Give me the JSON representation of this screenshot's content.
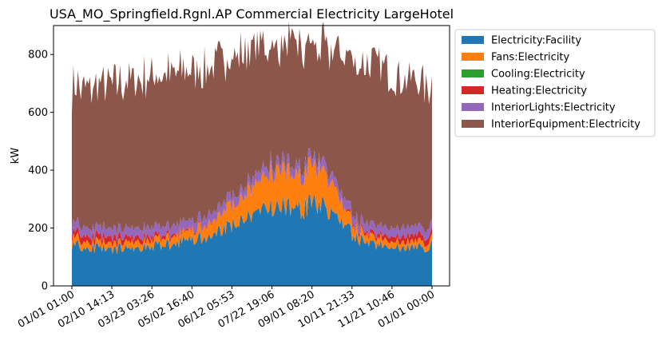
{
  "chart_data": {
    "type": "area",
    "title": "USA_MO_Springfield.Rgnl.AP Commercial Electricity LargeHotel",
    "xlabel": "",
    "ylabel": "kW",
    "ylim": [
      0,
      900
    ],
    "yticks": [
      0,
      200,
      400,
      600,
      800
    ],
    "xticklabels": [
      "01/01 01:00",
      "02/10 14:13",
      "03/23 03:26",
      "05/02 16:40",
      "06/12 05:53",
      "07/22 19:06",
      "09/01 08:20",
      "10/11 21:33",
      "11/21 10:46",
      "01/01 00:00"
    ],
    "legend_position": "outside-right-top",
    "grid": false,
    "x": [
      "01/01",
      "01/15",
      "02/01",
      "02/15",
      "03/01",
      "03/15",
      "04/01",
      "04/15",
      "05/01",
      "05/15",
      "06/01",
      "06/15",
      "07/01",
      "07/15",
      "08/01",
      "08/15",
      "09/01",
      "09/15",
      "10/01",
      "10/15",
      "11/01",
      "11/15",
      "12/01",
      "12/15",
      "12/31"
    ],
    "series": [
      {
        "name": "Electricity:Facility",
        "color": "#1f77b4",
        "values": [
          145,
          135,
          130,
          128,
          130,
          135,
          140,
          150,
          160,
          175,
          195,
          215,
          240,
          265,
          275,
          260,
          280,
          270,
          210,
          165,
          145,
          135,
          130,
          128,
          140
        ]
      },
      {
        "name": "Fans:Electricity",
        "color": "#ff7f0e",
        "values": [
          25,
          22,
          20,
          20,
          22,
          22,
          24,
          28,
          32,
          40,
          60,
          75,
          90,
          110,
          130,
          110,
          125,
          120,
          60,
          32,
          25,
          22,
          20,
          20,
          22
        ]
      },
      {
        "name": "Cooling:Electricity",
        "color": "#2ca02c",
        "values": [
          0,
          0,
          0,
          0,
          0,
          0,
          0,
          0,
          0,
          0,
          0,
          0,
          0,
          0,
          0,
          0,
          0,
          0,
          0,
          0,
          0,
          0,
          0,
          0,
          0
        ]
      },
      {
        "name": "Heating:Electricity",
        "color": "#d62728",
        "values": [
          20,
          22,
          22,
          20,
          18,
          15,
          12,
          8,
          5,
          3,
          2,
          2,
          2,
          2,
          2,
          2,
          2,
          2,
          4,
          8,
          12,
          16,
          20,
          22,
          20
        ]
      },
      {
        "name": "InteriorLights:Electricity",
        "color": "#9467bd",
        "values": [
          30,
          30,
          30,
          30,
          30,
          30,
          30,
          30,
          30,
          30,
          30,
          30,
          30,
          30,
          30,
          30,
          30,
          30,
          30,
          30,
          30,
          30,
          30,
          30,
          30
        ]
      },
      {
        "name": "InteriorEquipment:Electricity",
        "color": "#8c564b",
        "values": [
          470,
          480,
          490,
          500,
          510,
          520,
          525,
          520,
          520,
          510,
          500,
          480,
          450,
          420,
          390,
          420,
          380,
          395,
          490,
          540,
          555,
          545,
          515,
          505,
          480
        ]
      }
    ]
  }
}
